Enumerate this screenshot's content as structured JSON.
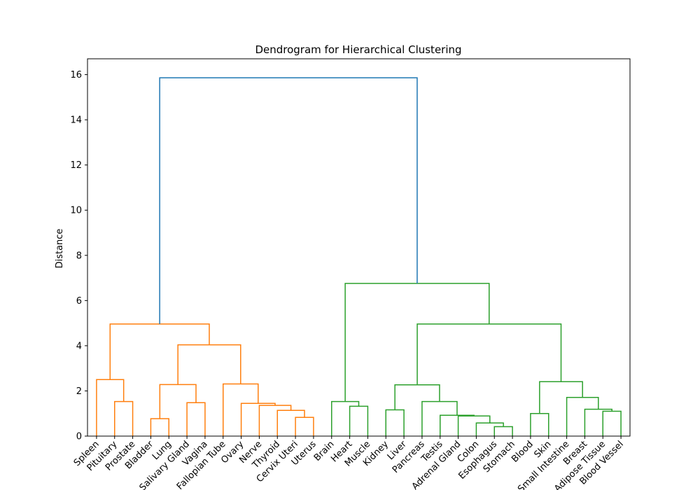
{
  "chart_data": {
    "type": "dendrogram",
    "title": "Dendrogram for Hierarchical Clustering",
    "xlabel": "",
    "ylabel": "Distance",
    "ylim": [
      0,
      16.7
    ],
    "yticks": [
      0,
      2,
      4,
      6,
      8,
      10,
      12,
      14,
      16
    ],
    "grid": false,
    "colors": {
      "cluster_a": "#ff7f0e",
      "cluster_b": "#2ca02c",
      "root": "#1f77b4"
    },
    "leaves": [
      "Spleen",
      "Pituitary",
      "Prostate",
      "Bladder",
      "Lung",
      "Salivary Gland",
      "Vagina",
      "Fallopian Tube",
      "Ovary",
      "Nerve",
      "Thyroid",
      "Cervix Uteri",
      "Uterus",
      "Brain",
      "Heart",
      "Muscle",
      "Kidney",
      "Liver",
      "Pancreas",
      "Testis",
      "Adrenal Gland",
      "Colon",
      "Esophagus",
      "Stomach",
      "Blood",
      "Skin",
      "Small Intestine",
      "Breast",
      "Adipose Tissue",
      "Blood Vessel"
    ],
    "merges": [
      {
        "left": "L1",
        "right": "L2",
        "height": 1.53,
        "color": "cluster_a"
      },
      {
        "left": "L0",
        "right": "N0",
        "height": 2.5,
        "color": "cluster_a"
      },
      {
        "left": "L3",
        "right": "L4",
        "height": 0.77,
        "color": "cluster_a"
      },
      {
        "left": "L5",
        "right": "L6",
        "height": 1.48,
        "color": "cluster_a"
      },
      {
        "left": "N2",
        "right": "N3",
        "height": 2.28,
        "color": "cluster_a"
      },
      {
        "left": "L11",
        "right": "L12",
        "height": 0.83,
        "color": "cluster_a"
      },
      {
        "left": "L10",
        "right": "N5",
        "height": 1.14,
        "color": "cluster_a"
      },
      {
        "left": "L9",
        "right": "N6",
        "height": 1.36,
        "color": "cluster_a"
      },
      {
        "left": "L8",
        "right": "N7",
        "height": 1.45,
        "color": "cluster_a"
      },
      {
        "left": "L7",
        "right": "N8",
        "height": 2.31,
        "color": "cluster_a"
      },
      {
        "left": "N4",
        "right": "N9",
        "height": 4.04,
        "color": "cluster_a"
      },
      {
        "left": "N1",
        "right": "N10",
        "height": 4.96,
        "color": "cluster_a"
      },
      {
        "left": "L14",
        "right": "L15",
        "height": 1.32,
        "color": "cluster_b"
      },
      {
        "left": "L13",
        "right": "N12",
        "height": 1.53,
        "color": "cluster_b"
      },
      {
        "left": "L16",
        "right": "L17",
        "height": 1.16,
        "color": "cluster_b"
      },
      {
        "left": "L22",
        "right": "L23",
        "height": 0.42,
        "color": "cluster_b"
      },
      {
        "left": "L21",
        "right": "N15",
        "height": 0.58,
        "color": "cluster_b"
      },
      {
        "left": "L20",
        "right": "N16",
        "height": 0.89,
        "color": "cluster_b"
      },
      {
        "left": "L19",
        "right": "N17",
        "height": 0.92,
        "color": "cluster_b"
      },
      {
        "left": "L18",
        "right": "N18",
        "height": 1.53,
        "color": "cluster_b"
      },
      {
        "left": "N14",
        "right": "N19",
        "height": 2.27,
        "color": "cluster_b"
      },
      {
        "left": "L24",
        "right": "L25",
        "height": 1.0,
        "color": "cluster_b"
      },
      {
        "left": "L28",
        "right": "L29",
        "height": 1.1,
        "color": "cluster_b"
      },
      {
        "left": "L27",
        "right": "N22",
        "height": 1.19,
        "color": "cluster_b"
      },
      {
        "left": "L26",
        "right": "N23",
        "height": 1.71,
        "color": "cluster_b"
      },
      {
        "left": "N21",
        "right": "N24",
        "height": 2.41,
        "color": "cluster_b"
      },
      {
        "left": "N20",
        "right": "N25",
        "height": 4.96,
        "color": "cluster_b"
      },
      {
        "left": "N13",
        "right": "N26",
        "height": 6.76,
        "color": "cluster_b"
      },
      {
        "left": "N11",
        "right": "N27",
        "height": 15.86,
        "color": "root"
      }
    ]
  }
}
